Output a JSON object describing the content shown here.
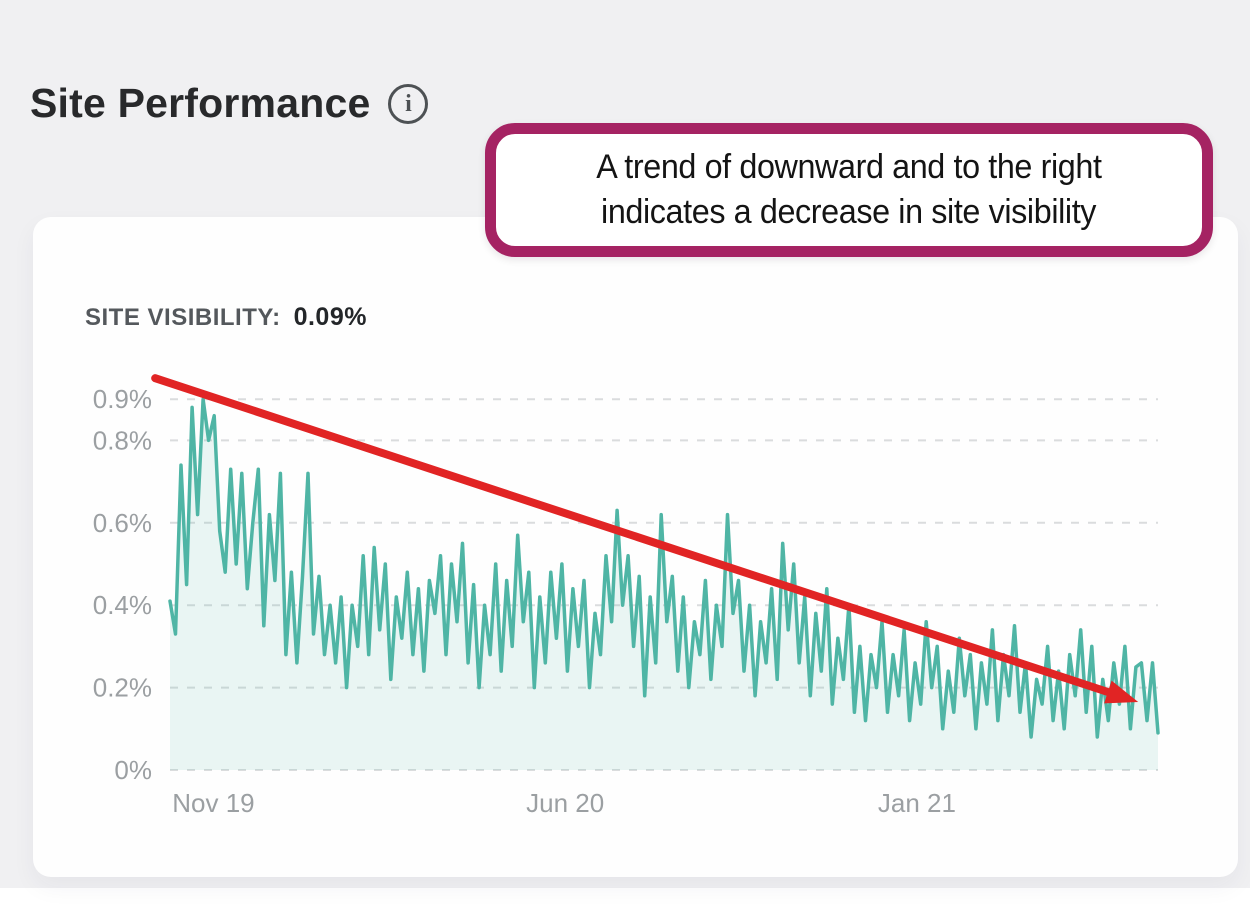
{
  "page": {
    "title": "Site Performance",
    "info_icon_glyph": "i"
  },
  "callout": {
    "lines": [
      "A trend of downward and to the right",
      "indicates a decrease in site visibility"
    ],
    "border_color": "#a52363",
    "text_color": "#141414"
  },
  "chart_data": {
    "type": "line",
    "title": "SITE VISIBILITY:",
    "current_value": "0.09%",
    "unit": "%",
    "ylim": [
      0,
      0.95
    ],
    "grid": "dashed",
    "legend": "none",
    "line_color": "#4fb5a5",
    "fill_color": "rgba(79,181,165,0.12)",
    "grid_color": "#dadcdd",
    "axis_color": "#9b9fa2",
    "y_ticks": [
      {
        "label": "0%",
        "v": 0.0
      },
      {
        "label": "0.2%",
        "v": 0.2
      },
      {
        "label": "0.4%",
        "v": 0.4
      },
      {
        "label": "0.6%",
        "v": 0.6
      },
      {
        "label": "0.8%",
        "v": 0.8
      },
      {
        "label": "0.9%",
        "v": 0.9
      }
    ],
    "x_ticks": [
      {
        "label": "Nov 19",
        "f": 0.044
      },
      {
        "label": "Jun 20",
        "f": 0.4
      },
      {
        "label": "Jan 21",
        "f": 0.756
      }
    ],
    "series": [
      {
        "name": "Site visibility (%)",
        "values": [
          0.41,
          0.33,
          0.74,
          0.45,
          0.88,
          0.62,
          0.9,
          0.8,
          0.86,
          0.58,
          0.48,
          0.73,
          0.5,
          0.72,
          0.44,
          0.6,
          0.73,
          0.35,
          0.62,
          0.46,
          0.72,
          0.28,
          0.48,
          0.26,
          0.47,
          0.72,
          0.33,
          0.47,
          0.28,
          0.4,
          0.26,
          0.42,
          0.2,
          0.4,
          0.3,
          0.52,
          0.28,
          0.54,
          0.34,
          0.5,
          0.22,
          0.42,
          0.32,
          0.48,
          0.28,
          0.44,
          0.24,
          0.46,
          0.38,
          0.52,
          0.28,
          0.5,
          0.36,
          0.55,
          0.26,
          0.45,
          0.2,
          0.4,
          0.28,
          0.5,
          0.24,
          0.46,
          0.3,
          0.57,
          0.36,
          0.48,
          0.2,
          0.42,
          0.26,
          0.48,
          0.32,
          0.5,
          0.24,
          0.44,
          0.3,
          0.46,
          0.2,
          0.38,
          0.28,
          0.52,
          0.36,
          0.63,
          0.4,
          0.52,
          0.3,
          0.47,
          0.18,
          0.42,
          0.26,
          0.62,
          0.36,
          0.47,
          0.24,
          0.42,
          0.2,
          0.36,
          0.28,
          0.46,
          0.22,
          0.4,
          0.3,
          0.62,
          0.38,
          0.46,
          0.24,
          0.4,
          0.18,
          0.36,
          0.26,
          0.44,
          0.22,
          0.55,
          0.34,
          0.5,
          0.26,
          0.42,
          0.18,
          0.38,
          0.24,
          0.44,
          0.16,
          0.32,
          0.22,
          0.4,
          0.14,
          0.3,
          0.12,
          0.28,
          0.2,
          0.36,
          0.14,
          0.28,
          0.18,
          0.34,
          0.12,
          0.26,
          0.16,
          0.36,
          0.2,
          0.3,
          0.1,
          0.24,
          0.14,
          0.32,
          0.18,
          0.28,
          0.1,
          0.26,
          0.16,
          0.34,
          0.12,
          0.28,
          0.18,
          0.35,
          0.14,
          0.26,
          0.08,
          0.22,
          0.16,
          0.3,
          0.12,
          0.24,
          0.1,
          0.28,
          0.18,
          0.34,
          0.14,
          0.3,
          0.08,
          0.22,
          0.12,
          0.26,
          0.16,
          0.3,
          0.1,
          0.25,
          0.26,
          0.12,
          0.26,
          0.09
        ]
      }
    ],
    "annotation_arrow": {
      "x1f": -0.015,
      "y1v": 0.951,
      "x2f": 0.98,
      "y2v": 0.165,
      "color": "#e12424"
    }
  }
}
